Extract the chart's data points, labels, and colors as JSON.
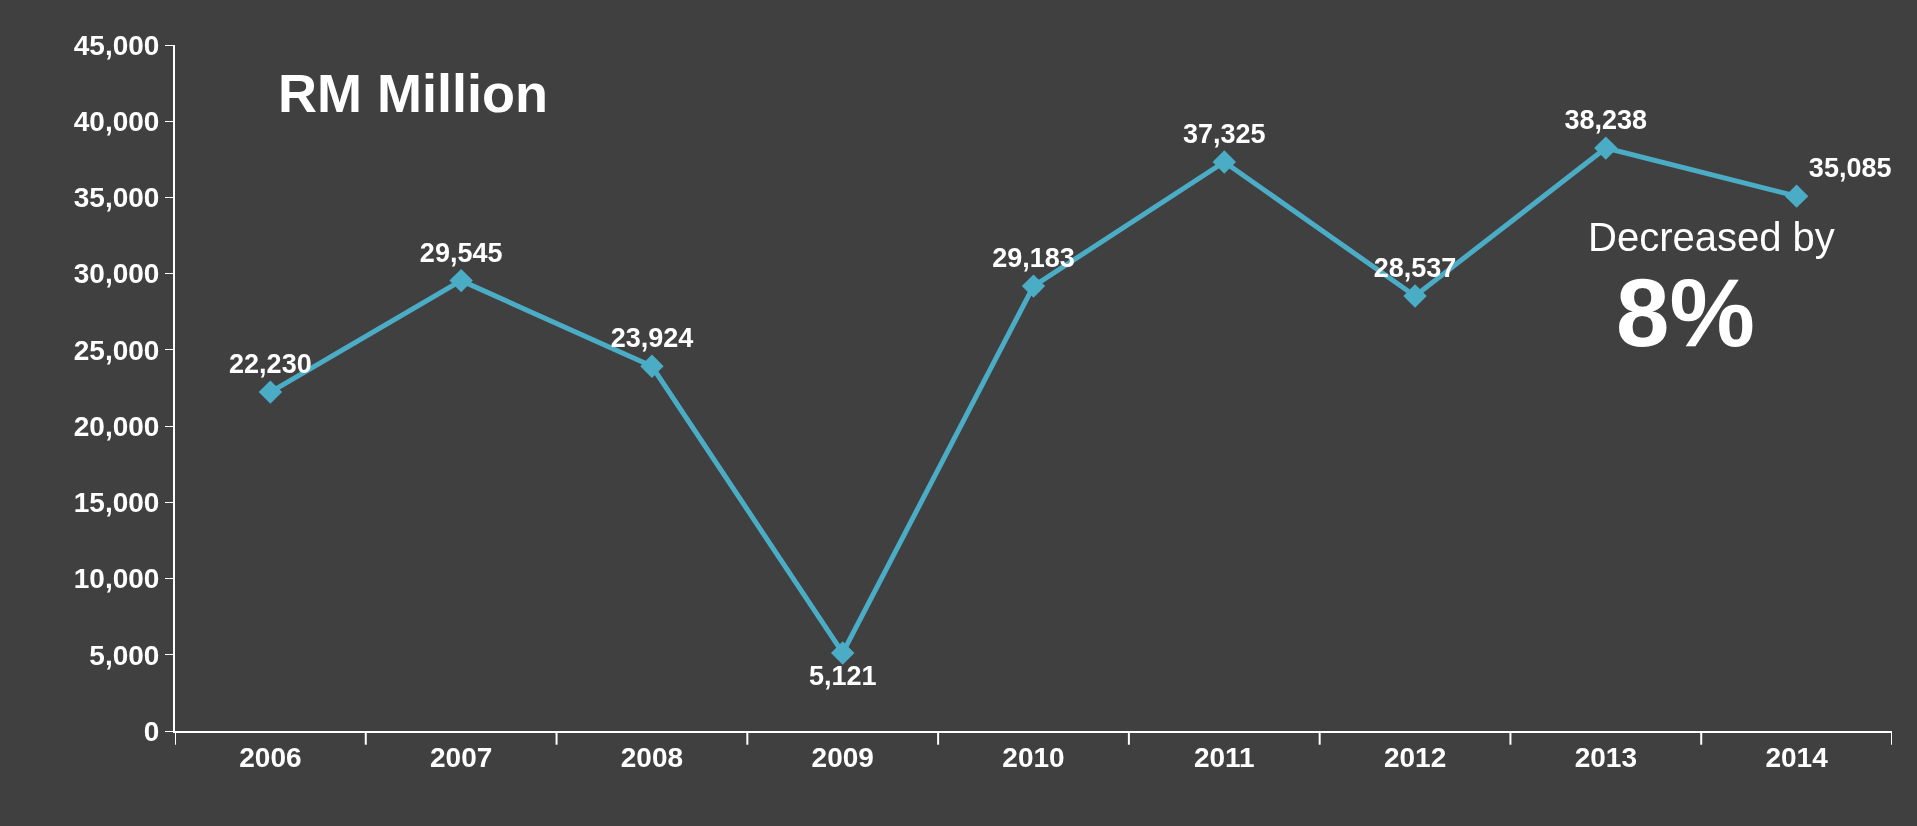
{
  "chart_data": {
    "type": "line",
    "title": "RM Million",
    "categories": [
      "2006",
      "2007",
      "2008",
      "2009",
      "2010",
      "2011",
      "2012",
      "2013",
      "2014"
    ],
    "series": [
      {
        "color": "#4bacc6",
        "values": [
          22230,
          29545,
          23924,
          5121,
          29183,
          37325,
          28537,
          38238,
          35085
        ],
        "value_labels": [
          "22,230",
          "29,545",
          "23,924",
          "5,121",
          "29,183",
          "37,325",
          "28,537",
          "38,238",
          "35,085"
        ]
      }
    ],
    "ylim": [
      0,
      45000
    ],
    "yticks": [
      0,
      {
        "value": 5000,
        "label": "5,000"
      },
      {
        "value": 10000,
        "label": "10,000"
      },
      {
        "value": 15000,
        "label": "15,000"
      },
      {
        "value": 20000,
        "label": "20,000"
      },
      {
        "value": 25000,
        "label": "25,000"
      },
      {
        "value": 30000,
        "label": "30,000"
      },
      {
        "value": 35000,
        "label": "35,000"
      },
      {
        "value": 40000,
        "label": "40,000"
      },
      {
        "value": 45000,
        "label": "45,000"
      }
    ],
    "marker": "diamond",
    "line_style": "solid",
    "grid": false,
    "annotations": [
      "Decreased by",
      "8%"
    ]
  }
}
